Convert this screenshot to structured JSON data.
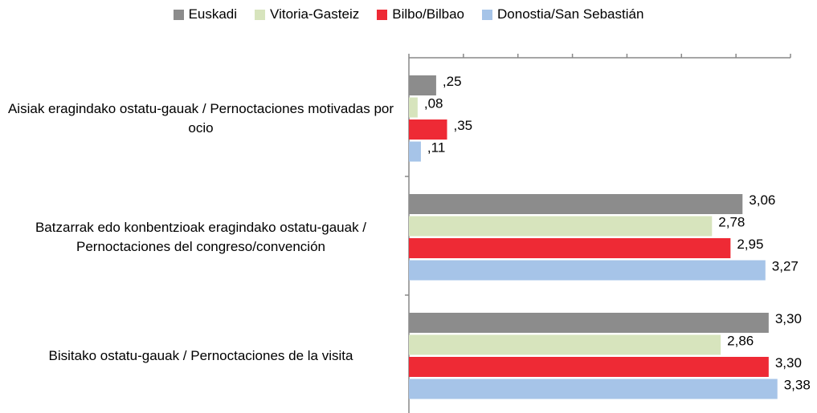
{
  "chart_data": {
    "type": "hbar",
    "categories": [
      "Aisiak eragindako ostatu-gauak / Pernoctaciones motivadas por ocio",
      "Batzarrak edo konbentzioak eragindako ostatu-gauak / Pernoctaciones del congreso/convención",
      "Bisitako ostatu-gauak / Pernoctaciones de la visita"
    ],
    "series": [
      {
        "name": "Euskadi",
        "color": "#8c8c8c",
        "values": [
          0.25,
          3.06,
          3.3
        ],
        "value_labels": [
          ",25",
          "3,06",
          "3,30"
        ]
      },
      {
        "name": "Vitoria-Gasteiz",
        "color": "#d7e4bd",
        "values": [
          0.08,
          2.78,
          2.86
        ],
        "value_labels": [
          ",08",
          "2,78",
          "2,86"
        ]
      },
      {
        "name": "Bilbo/Bilbao",
        "color": "#ee2a35",
        "values": [
          0.35,
          2.95,
          3.3
        ],
        "value_labels": [
          ",35",
          "2,95",
          "3,30"
        ]
      },
      {
        "name": "Donostia/San Sebastián",
        "color": "#a6c4e8",
        "values": [
          0.11,
          3.27,
          3.38
        ],
        "value_labels": [
          ",11",
          "3,27",
          "3,38"
        ]
      }
    ],
    "xlim": [
      0,
      3.5
    ],
    "xticks": [
      0,
      0.5,
      1,
      1.5,
      2,
      2.5,
      3,
      3.5
    ]
  }
}
